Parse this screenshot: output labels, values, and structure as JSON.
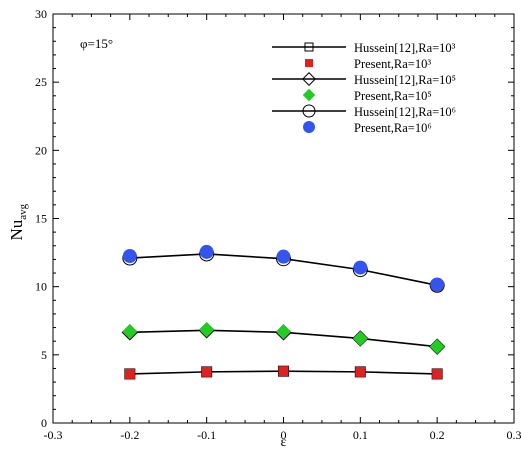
{
  "chart_data": {
    "type": "line",
    "annotation": "φ=15°",
    "ylabel": "Nu",
    "ylabel_sub": "avg",
    "xlabel": "ε",
    "xlim": [
      -0.3,
      0.3
    ],
    "ylim": [
      0,
      30
    ],
    "x_ticks": [
      "-0.3",
      "-0.2",
      "-0.1",
      "0",
      "0.1",
      "0.2",
      "0.3"
    ],
    "y_ticks": [
      "0",
      "5",
      "10",
      "15",
      "20",
      "25",
      "30"
    ],
    "x": [
      -0.2,
      -0.1,
      0,
      0.1,
      0.2
    ],
    "grid": false,
    "legend_position": "top-right",
    "series": [
      {
        "name": "Hussein[12],Ra=10³",
        "marker": "open-square",
        "line": true,
        "color": "#000000",
        "values": [
          3.6,
          3.75,
          3.8,
          3.75,
          3.6
        ]
      },
      {
        "name": "Present,Ra=10³",
        "marker": "filled-square",
        "line": false,
        "color": "#dd2222",
        "values": [
          3.6,
          3.75,
          3.8,
          3.75,
          3.6
        ]
      },
      {
        "name": "Hussein[12],Ra=10⁵",
        "marker": "open-diamond",
        "line": true,
        "color": "#000000",
        "values": [
          6.65,
          6.8,
          6.65,
          6.2,
          5.6
        ]
      },
      {
        "name": "Present,Ra=10⁵",
        "marker": "filled-diamond",
        "line": false,
        "color": "#22cc22",
        "values": [
          6.7,
          6.85,
          6.7,
          6.2,
          5.6
        ]
      },
      {
        "name": "Hussein[12],Ra=10⁶",
        "marker": "open-circle",
        "line": true,
        "color": "#000000",
        "values": [
          12.1,
          12.4,
          12.05,
          11.25,
          10.1
        ]
      },
      {
        "name": "Present,Ra=10⁶",
        "marker": "filled-circle",
        "line": false,
        "color": "#3355ee",
        "values": [
          12.25,
          12.55,
          12.2,
          11.4,
          10.15
        ]
      }
    ]
  }
}
